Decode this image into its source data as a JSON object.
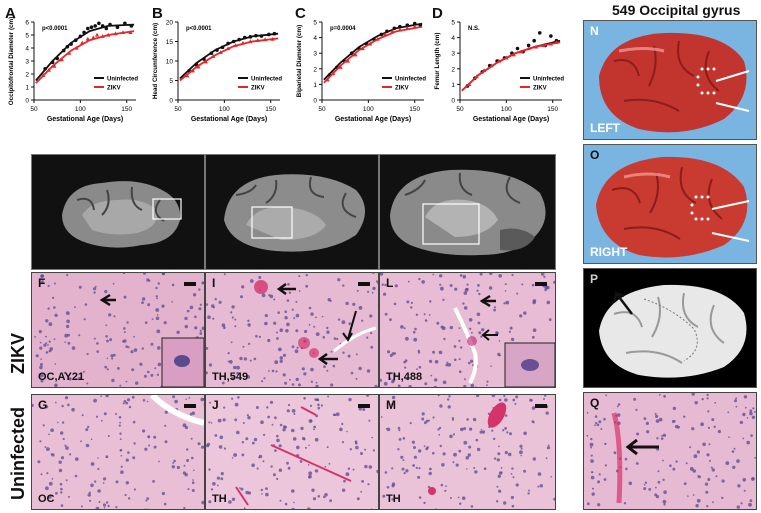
{
  "figure_title": "549 Occipital gyrus",
  "chart_data": [
    {
      "panel": "A",
      "type": "scatter",
      "ylabel": "Occipitofrontal Diameter (cm)",
      "xlabel": "Gestational Age (Days)",
      "pvalue": "p<0.0001",
      "xlim": [
        50,
        160
      ],
      "ylim": [
        0,
        6
      ],
      "xticks": [
        "50",
        "100",
        "150"
      ],
      "yticks": [
        "0",
        "1",
        "2",
        "3",
        "4",
        "5",
        "6"
      ],
      "series": [
        {
          "name": "Uninfected",
          "color": "#111111",
          "points": [
            [
              62,
              2.4
            ],
            [
              70,
              2.9
            ],
            [
              75,
              3.2
            ],
            [
              82,
              3.8
            ],
            [
              86,
              4.1
            ],
            [
              90,
              4.3
            ],
            [
              95,
              4.6
            ],
            [
              100,
              4.9
            ],
            [
              104,
              5.2
            ],
            [
              108,
              5.5
            ],
            [
              112,
              5.6
            ],
            [
              116,
              5.7
            ],
            [
              120,
              5.9
            ],
            [
              124,
              5.7
            ],
            [
              128,
              5.5
            ],
            [
              132,
              5.8
            ],
            [
              140,
              5.6
            ],
            [
              148,
              5.9
            ],
            [
              155,
              5.7
            ]
          ],
          "curve": [
            [
              52,
              1.5
            ],
            [
              70,
              3.0
            ],
            [
              90,
              4.4
            ],
            [
              110,
              5.3
            ],
            [
              130,
              5.7
            ],
            [
              158,
              5.8
            ]
          ]
        },
        {
          "name": "ZIKV",
          "color": "#e8262a",
          "points": [
            [
              60,
              1.9
            ],
            [
              66,
              2.3
            ],
            [
              72,
              2.6
            ],
            [
              80,
              3.1
            ],
            [
              88,
              3.6
            ],
            [
              96,
              4.0
            ],
            [
              102,
              4.4
            ],
            [
              108,
              4.7
            ],
            [
              114,
              4.8
            ],
            [
              118,
              5.0
            ],
            [
              124,
              4.9
            ],
            [
              130,
              5.0
            ],
            [
              138,
              5.1
            ],
            [
              146,
              5.2
            ],
            [
              154,
              5.2
            ]
          ],
          "curve": [
            [
              52,
              1.3
            ],
            [
              70,
              2.6
            ],
            [
              90,
              3.8
            ],
            [
              110,
              4.6
            ],
            [
              130,
              5.0
            ],
            [
              158,
              5.3
            ]
          ]
        }
      ]
    },
    {
      "panel": "B",
      "type": "scatter",
      "ylabel": "Head Circumference (cm)",
      "xlabel": "Gestational Age (Days)",
      "pvalue": "p<0.0001",
      "xlim": [
        50,
        160
      ],
      "ylim": [
        0,
        20
      ],
      "xticks": [
        "50",
        "100",
        "150"
      ],
      "yticks": [
        "0",
        "5",
        "10",
        "15",
        "20"
      ],
      "series": [
        {
          "name": "Uninfected",
          "color": "#111111",
          "points": [
            [
              62,
              7.5
            ],
            [
              70,
              9.0
            ],
            [
              78,
              10.5
            ],
            [
              86,
              12.0
            ],
            [
              92,
              12.8
            ],
            [
              98,
              13.5
            ],
            [
              104,
              14.5
            ],
            [
              110,
              15.0
            ],
            [
              116,
              15.5
            ],
            [
              122,
              16.0
            ],
            [
              128,
              16.2
            ],
            [
              134,
              16.5
            ],
            [
              140,
              16.4
            ],
            [
              148,
              16.8
            ],
            [
              154,
              17.0
            ]
          ],
          "curve": [
            [
              52,
              5.5
            ],
            [
              70,
              9.5
            ],
            [
              90,
              12.8
            ],
            [
              110,
              15.0
            ],
            [
              130,
              16.3
            ],
            [
              158,
              17.0
            ]
          ]
        },
        {
          "name": "ZIKV",
          "color": "#e8262a",
          "points": [
            [
              60,
              6.2
            ],
            [
              66,
              7.5
            ],
            [
              72,
              8.5
            ],
            [
              80,
              9.8
            ],
            [
              88,
              11.2
            ],
            [
              96,
              12.2
            ],
            [
              104,
              13.2
            ],
            [
              112,
              14.0
            ],
            [
              120,
              14.6
            ],
            [
              128,
              15.0
            ],
            [
              136,
              15.3
            ],
            [
              144,
              15.5
            ],
            [
              152,
              15.6
            ]
          ],
          "curve": [
            [
              52,
              5.0
            ],
            [
              70,
              8.5
            ],
            [
              90,
              11.5
            ],
            [
              110,
              13.8
            ],
            [
              130,
              15.0
            ],
            [
              158,
              15.8
            ]
          ]
        }
      ]
    },
    {
      "panel": "C",
      "type": "scatter",
      "ylabel": "Biparietal Diameter (cm)",
      "xlabel": "Gestational Age (Days)",
      "pvalue": "p=0.0004",
      "xlim": [
        50,
        160
      ],
      "ylim": [
        0,
        5
      ],
      "xticks": [
        "50",
        "100",
        "150"
      ],
      "yticks": [
        "0",
        "1",
        "2",
        "3",
        "4",
        "5"
      ],
      "series": [
        {
          "name": "Uninfected",
          "color": "#111111",
          "points": [
            [
              58,
              1.6
            ],
            [
              66,
              2.1
            ],
            [
              74,
              2.5
            ],
            [
              82,
              3.0
            ],
            [
              90,
              3.3
            ],
            [
              98,
              3.6
            ],
            [
              106,
              3.9
            ],
            [
              114,
              4.2
            ],
            [
              120,
              4.4
            ],
            [
              128,
              4.6
            ],
            [
              134,
              4.7
            ],
            [
              142,
              4.8
            ],
            [
              150,
              4.9
            ],
            [
              156,
              4.8
            ]
          ],
          "curve": [
            [
              52,
              1.3
            ],
            [
              70,
              2.4
            ],
            [
              90,
              3.4
            ],
            [
              110,
              4.1
            ],
            [
              130,
              4.6
            ],
            [
              158,
              4.9
            ]
          ]
        },
        {
          "name": "ZIKV",
          "color": "#e8262a",
          "points": [
            [
              56,
              1.3
            ],
            [
              62,
              1.7
            ],
            [
              70,
              2.1
            ],
            [
              78,
              2.5
            ],
            [
              86,
              2.9
            ],
            [
              94,
              3.3
            ],
            [
              102,
              3.6
            ],
            [
              110,
              3.9
            ],
            [
              118,
              4.2
            ],
            [
              126,
              4.4
            ],
            [
              134,
              4.5
            ],
            [
              142,
              4.6
            ],
            [
              150,
              4.7
            ]
          ],
          "curve": [
            [
              52,
              1.1
            ],
            [
              70,
              2.2
            ],
            [
              90,
              3.2
            ],
            [
              110,
              3.9
            ],
            [
              130,
              4.4
            ],
            [
              158,
              4.7
            ]
          ]
        }
      ]
    },
    {
      "panel": "D",
      "type": "scatter",
      "ylabel": "Femur Length (cm)",
      "xlabel": "Gestational Age (Days)",
      "pvalue": "N.S.",
      "xlim": [
        50,
        160
      ],
      "ylim": [
        0,
        5
      ],
      "xticks": [
        "50",
        "100",
        "150"
      ],
      "yticks": [
        "0",
        "1",
        "2",
        "3",
        "4",
        "5"
      ],
      "series": [
        {
          "name": "Uninfected",
          "color": "#111111",
          "points": [
            [
              58,
              0.9
            ],
            [
              66,
              1.4
            ],
            [
              74,
              1.8
            ],
            [
              82,
              2.2
            ],
            [
              90,
              2.5
            ],
            [
              98,
              2.7
            ],
            [
              106,
              3.0
            ],
            [
              112,
              3.3
            ],
            [
              118,
              3.1
            ],
            [
              124,
              3.5
            ],
            [
              130,
              3.8
            ],
            [
              136,
              4.3
            ],
            [
              142,
              3.5
            ],
            [
              148,
              4.1
            ],
            [
              154,
              3.8
            ]
          ],
          "curve": [
            [
              52,
              0.6
            ],
            [
              70,
              1.6
            ],
            [
              90,
              2.4
            ],
            [
              110,
              3.0
            ],
            [
              130,
              3.4
            ],
            [
              158,
              3.8
            ]
          ]
        },
        {
          "name": "ZIKV",
          "color": "#e8262a",
          "points": [
            [
              60,
              1.0
            ],
            [
              68,
              1.5
            ],
            [
              76,
              1.9
            ],
            [
              84,
              2.2
            ],
            [
              92,
              2.5
            ],
            [
              100,
              2.7
            ],
            [
              108,
              2.9
            ],
            [
              116,
              3.1
            ],
            [
              124,
              3.3
            ],
            [
              132,
              3.4
            ],
            [
              140,
              3.5
            ],
            [
              148,
              3.6
            ],
            [
              154,
              3.7
            ]
          ],
          "curve": [
            [
              52,
              0.6
            ],
            [
              70,
              1.6
            ],
            [
              90,
              2.4
            ],
            [
              110,
              3.0
            ],
            [
              130,
              3.4
            ],
            [
              158,
              3.7
            ]
          ]
        }
      ]
    }
  ],
  "legend": {
    "uninfected": "Uninfected",
    "zikv": "ZIKV"
  },
  "row_labels": {
    "zikv": "ZIKV",
    "uninfected": "Uninfected"
  },
  "histology": {
    "F": {
      "letter": "F",
      "caption": "OC,AY21"
    },
    "I": {
      "letter": "I",
      "caption": "TH,549"
    },
    "L": {
      "letter": "L",
      "caption": "TH,488"
    },
    "G": {
      "letter": "G",
      "caption": "OC"
    },
    "J": {
      "letter": "J",
      "caption": "TH"
    },
    "M": {
      "letter": "M",
      "caption": "TH"
    },
    "Q": {
      "letter": "Q",
      "caption": ""
    }
  },
  "photos": {
    "N": {
      "letter": "N",
      "caption": "LEFT"
    },
    "O": {
      "letter": "O",
      "caption": "RIGHT"
    },
    "P": {
      "letter": "P"
    }
  },
  "colors": {
    "he_pink": "#e6b4cf",
    "he_nuclei": "#5a4a8e",
    "zikv_red": "#e8262a",
    "brain_red": "#c2342e",
    "glove_blue": "#7fb8e3"
  }
}
